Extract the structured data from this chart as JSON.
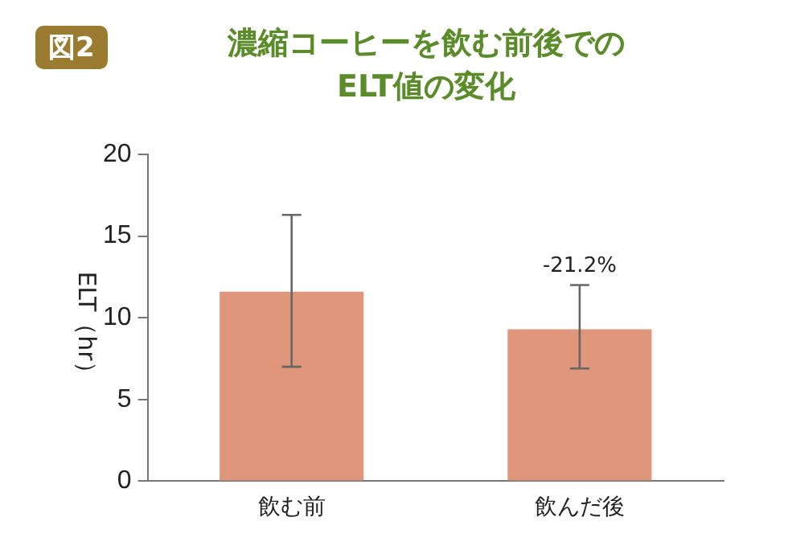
{
  "chart_data": {
    "type": "bar",
    "title": "濃縮コーヒーを飲む前後での\nELT値の変化",
    "ylabel": "ELT（hr）",
    "categories": [
      "飲む前",
      "飲んだ後"
    ],
    "values": [
      11.6,
      9.3
    ],
    "color": "#e0967a",
    "errors": [
      [
        7.0,
        16.3
      ],
      [
        6.9,
        12.0
      ]
    ],
    "ylim": [
      0,
      20
    ],
    "yticks": [
      0,
      5,
      10,
      15,
      20
    ],
    "grid": false,
    "legend": false,
    "annotations": [
      "図2",
      {
        "text": "-21.2%",
        "x": "飲んだ後",
        "y": 12.0
      }
    ]
  }
}
